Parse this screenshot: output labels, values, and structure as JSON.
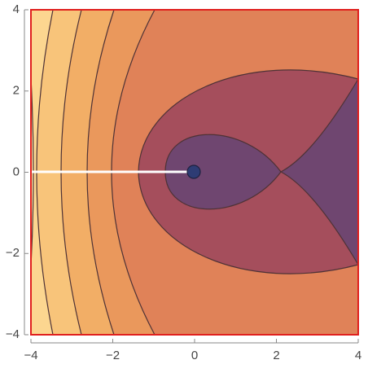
{
  "chart_data": {
    "type": "contour",
    "xlim": [
      -4,
      4
    ],
    "ylim": [
      -4,
      4
    ],
    "xticks": [
      {
        "value": -4,
        "label": "−4"
      },
      {
        "value": -2,
        "label": "−2"
      },
      0,
      2,
      4
    ],
    "yticks": [
      {
        "value": -4,
        "label": "−4"
      },
      {
        "value": -2,
        "label": "−2"
      },
      0,
      2,
      4
    ]
  }
}
